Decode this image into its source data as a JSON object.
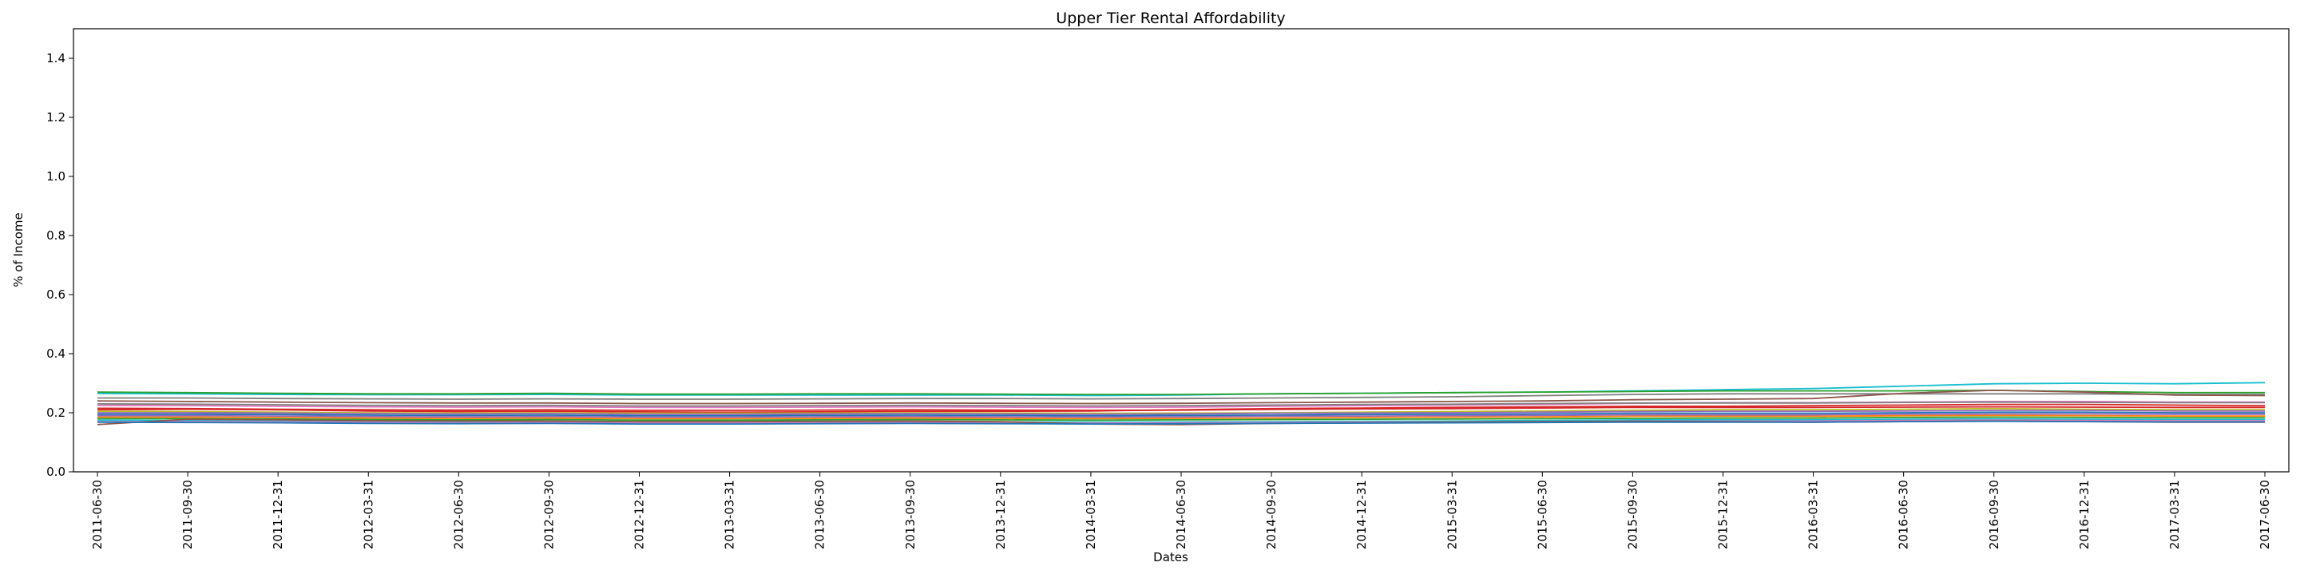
{
  "chart_data": {
    "type": "line",
    "title": "Upper Tier Rental Affordability",
    "xlabel": "Dates",
    "ylabel": "% of Income",
    "ylim": [
      0.0,
      1.5
    ],
    "yticks": [
      "0.0",
      "0.2",
      "0.4",
      "0.6",
      "0.8",
      "1.0",
      "1.2",
      "1.4"
    ],
    "grid": false,
    "legend": "none",
    "x": [
      "2011-06-30",
      "2011-09-30",
      "2011-12-31",
      "2012-03-31",
      "2012-06-30",
      "2012-09-30",
      "2012-12-31",
      "2013-03-31",
      "2013-06-30",
      "2013-09-30",
      "2013-12-31",
      "2014-03-31",
      "2014-06-30",
      "2014-09-30",
      "2014-12-31",
      "2015-03-31",
      "2015-06-30",
      "2015-09-30",
      "2015-12-31",
      "2016-03-31",
      "2016-06-30",
      "2016-09-30",
      "2016-12-31",
      "2017-03-31",
      "2017-06-30"
    ],
    "series": [
      {
        "color": "#17becf",
        "values": [
          0.265,
          0.264,
          0.262,
          0.261,
          0.261,
          0.262,
          0.26,
          0.26,
          0.26,
          0.26,
          0.26,
          0.258,
          0.26,
          0.264,
          0.266,
          0.268,
          0.27,
          0.274,
          0.278,
          0.282,
          0.29,
          0.298,
          0.3,
          0.298,
          0.302
        ]
      },
      {
        "color": "#2ca02c",
        "values": [
          0.27,
          0.268,
          0.266,
          0.264,
          0.264,
          0.266,
          0.263,
          0.263,
          0.264,
          0.264,
          0.263,
          0.262,
          0.262,
          0.264,
          0.266,
          0.268,
          0.27,
          0.272,
          0.274,
          0.274,
          0.274,
          0.276,
          0.272,
          0.268,
          0.268
        ]
      },
      {
        "color": "#7f7f7f",
        "values": [
          0.25,
          0.25,
          0.248,
          0.247,
          0.246,
          0.247,
          0.246,
          0.246,
          0.247,
          0.248,
          0.248,
          0.247,
          0.248,
          0.25,
          0.252,
          0.254,
          0.258,
          0.262,
          0.264,
          0.264,
          0.264,
          0.264,
          0.264,
          0.262,
          0.262
        ]
      },
      {
        "color": "#8c564b",
        "values": [
          0.24,
          0.238,
          0.236,
          0.234,
          0.233,
          0.233,
          0.231,
          0.231,
          0.232,
          0.233,
          0.232,
          0.231,
          0.232,
          0.234,
          0.236,
          0.238,
          0.24,
          0.244,
          0.246,
          0.248,
          0.266,
          0.276,
          0.27,
          0.26,
          0.258
        ]
      },
      {
        "color": "#e377c2",
        "values": [
          0.225,
          0.224,
          0.222,
          0.22,
          0.219,
          0.22,
          0.218,
          0.218,
          0.219,
          0.22,
          0.219,
          0.218,
          0.219,
          0.222,
          0.224,
          0.226,
          0.228,
          0.232,
          0.234,
          0.234,
          0.236,
          0.238,
          0.238,
          0.236,
          0.236
        ]
      },
      {
        "color": "#d62728",
        "values": [
          0.21,
          0.212,
          0.21,
          0.206,
          0.204,
          0.205,
          0.203,
          0.202,
          0.203,
          0.205,
          0.205,
          0.206,
          0.21,
          0.214,
          0.216,
          0.218,
          0.22,
          0.222,
          0.222,
          0.224,
          0.226,
          0.228,
          0.228,
          0.226,
          0.224
        ]
      },
      {
        "color": "#bcbd22",
        "values": [
          0.205,
          0.204,
          0.202,
          0.2,
          0.199,
          0.2,
          0.198,
          0.198,
          0.199,
          0.2,
          0.199,
          0.198,
          0.199,
          0.2,
          0.202,
          0.204,
          0.206,
          0.208,
          0.21,
          0.21,
          0.212,
          0.214,
          0.212,
          0.21,
          0.21
        ]
      },
      {
        "color": "#1f77b4",
        "values": [
          0.195,
          0.195,
          0.194,
          0.192,
          0.191,
          0.192,
          0.19,
          0.19,
          0.191,
          0.192,
          0.191,
          0.19,
          0.191,
          0.192,
          0.194,
          0.195,
          0.196,
          0.198,
          0.198,
          0.198,
          0.2,
          0.202,
          0.202,
          0.2,
          0.2
        ]
      },
      {
        "color": "#9467bd",
        "values": [
          0.19,
          0.19,
          0.189,
          0.187,
          0.186,
          0.187,
          0.185,
          0.185,
          0.186,
          0.187,
          0.186,
          0.185,
          0.186,
          0.188,
          0.189,
          0.19,
          0.191,
          0.193,
          0.193,
          0.193,
          0.195,
          0.196,
          0.196,
          0.195,
          0.195
        ]
      },
      {
        "color": "#ff7f0e",
        "values": [
          0.185,
          0.185,
          0.184,
          0.182,
          0.181,
          0.182,
          0.18,
          0.18,
          0.181,
          0.182,
          0.181,
          0.18,
          0.181,
          0.182,
          0.184,
          0.185,
          0.186,
          0.188,
          0.188,
          0.188,
          0.19,
          0.191,
          0.19,
          0.189,
          0.189
        ]
      },
      {
        "color": "#2ca02c",
        "values": [
          0.18,
          0.18,
          0.179,
          0.177,
          0.176,
          0.177,
          0.175,
          0.175,
          0.176,
          0.177,
          0.176,
          0.175,
          0.176,
          0.177,
          0.178,
          0.179,
          0.18,
          0.181,
          0.182,
          0.182,
          0.184,
          0.185,
          0.184,
          0.183,
          0.183
        ]
      },
      {
        "color": "#17becf",
        "values": [
          0.175,
          0.174,
          0.172,
          0.17,
          0.169,
          0.17,
          0.168,
          0.168,
          0.169,
          0.17,
          0.169,
          0.168,
          0.169,
          0.17,
          0.171,
          0.172,
          0.174,
          0.176,
          0.176,
          0.176,
          0.178,
          0.179,
          0.178,
          0.177,
          0.177
        ]
      },
      {
        "color": "#e377c2",
        "values": [
          0.17,
          0.17,
          0.169,
          0.167,
          0.166,
          0.167,
          0.165,
          0.165,
          0.166,
          0.167,
          0.166,
          0.165,
          0.166,
          0.167,
          0.168,
          0.169,
          0.17,
          0.172,
          0.172,
          0.172,
          0.174,
          0.175,
          0.174,
          0.173,
          0.173
        ]
      },
      {
        "color": "#8c564b",
        "values": [
          0.16,
          0.178,
          0.176,
          0.173,
          0.172,
          0.172,
          0.17,
          0.17,
          0.171,
          0.172,
          0.17,
          0.162,
          0.16,
          0.164,
          0.166,
          0.168,
          0.17,
          0.171,
          0.17,
          0.168,
          0.17,
          0.172,
          0.17,
          0.168,
          0.168
        ]
      },
      {
        "color": "#1f77b4",
        "values": [
          0.168,
          0.167,
          0.166,
          0.164,
          0.163,
          0.164,
          0.162,
          0.162,
          0.163,
          0.164,
          0.163,
          0.162,
          0.163,
          0.164,
          0.165,
          0.166,
          0.167,
          0.168,
          0.168,
          0.168,
          0.17,
          0.171,
          0.17,
          0.169,
          0.169
        ]
      },
      {
        "color": "#9467bd",
        "values": [
          0.2,
          0.2,
          0.199,
          0.197,
          0.196,
          0.197,
          0.195,
          0.195,
          0.196,
          0.197,
          0.196,
          0.195,
          0.196,
          0.198,
          0.199,
          0.2,
          0.202,
          0.204,
          0.205,
          0.205,
          0.206,
          0.208,
          0.208,
          0.206,
          0.206
        ]
      },
      {
        "color": "#d62728",
        "values": [
          0.215,
          0.214,
          0.212,
          0.21,
          0.209,
          0.21,
          0.208,
          0.208,
          0.209,
          0.21,
          0.209,
          0.208,
          0.209,
          0.211,
          0.213,
          0.214,
          0.216,
          0.218,
          0.218,
          0.218,
          0.219,
          0.22,
          0.219,
          0.218,
          0.218
        ]
      },
      {
        "color": "#7f7f7f",
        "values": [
          0.23,
          0.229,
          0.227,
          0.225,
          0.224,
          0.225,
          0.223,
          0.223,
          0.224,
          0.225,
          0.224,
          0.223,
          0.224,
          0.226,
          0.228,
          0.229,
          0.231,
          0.233,
          0.233,
          0.233,
          0.235,
          0.236,
          0.235,
          0.234,
          0.234
        ]
      }
    ]
  }
}
